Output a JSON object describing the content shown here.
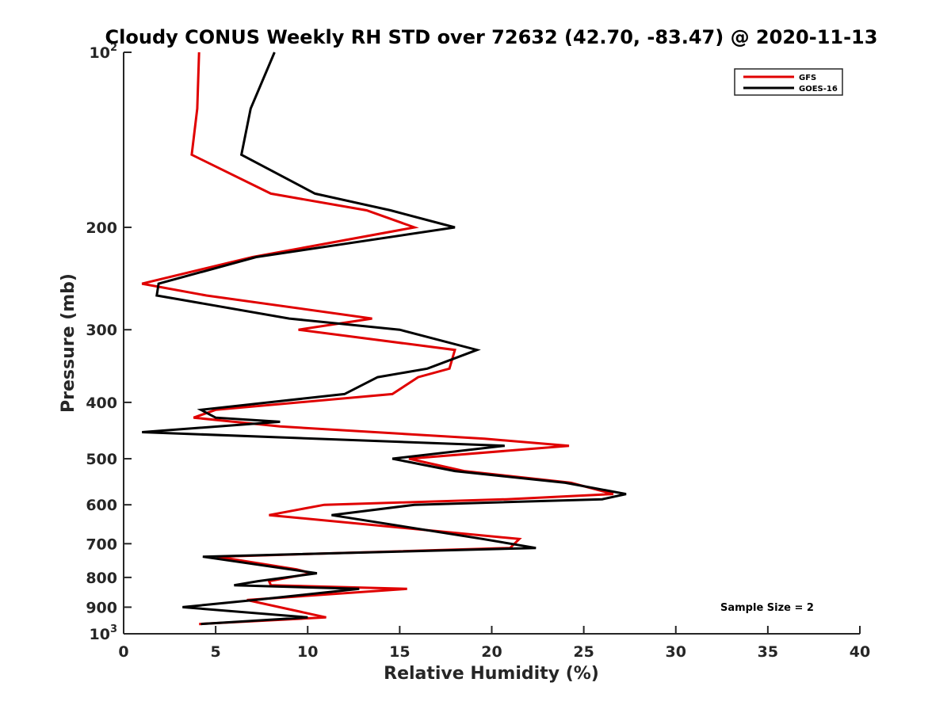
{
  "chart_data": {
    "type": "line",
    "title": "Cloudy CONUS Weekly RH STD over 72632 (42.70, -83.47) @ 2020-11-13",
    "xlabel": "Relative Humidity (%)",
    "ylabel": "Pressure (mb)",
    "xlim": [
      0,
      40
    ],
    "ylim": [
      100,
      1000
    ],
    "yscale": "log",
    "y_reversed": true,
    "xticks": [
      0,
      5,
      10,
      15,
      20,
      25,
      30,
      35,
      40
    ],
    "yticks": [
      {
        "value": 100,
        "base": "10",
        "exp": "2"
      },
      {
        "value": 200,
        "label": "200"
      },
      {
        "value": 300,
        "label": "300"
      },
      {
        "value": 400,
        "label": "400"
      },
      {
        "value": 500,
        "label": "500"
      },
      {
        "value": 600,
        "label": "600"
      },
      {
        "value": 700,
        "label": "700"
      },
      {
        "value": 800,
        "label": "800"
      },
      {
        "value": 900,
        "label": "900"
      },
      {
        "value": 1000,
        "base": "10",
        "exp": "3"
      }
    ],
    "legend_position": "top-right",
    "annotation": "Sample Size = 2",
    "series": [
      {
        "name": "GFS",
        "color": "#e00000",
        "points": [
          [
            4.1,
            100
          ],
          [
            4.0,
            125
          ],
          [
            3.7,
            150
          ],
          [
            8.0,
            175
          ],
          [
            13.2,
            187
          ],
          [
            15.8,
            200
          ],
          [
            7.0,
            225
          ],
          [
            1.0,
            250
          ],
          [
            4.5,
            262
          ],
          [
            13.5,
            287
          ],
          [
            9.5,
            300
          ],
          [
            18.0,
            325
          ],
          [
            17.7,
            350
          ],
          [
            16.0,
            362
          ],
          [
            14.6,
            387
          ],
          [
            5.0,
            412
          ],
          [
            3.8,
            425
          ],
          [
            8.5,
            440
          ],
          [
            19.6,
            462
          ],
          [
            24.2,
            475
          ],
          [
            15.5,
            500
          ],
          [
            18.5,
            525
          ],
          [
            24.3,
            550
          ],
          [
            26.6,
            575
          ],
          [
            20.8,
            587
          ],
          [
            10.9,
            600
          ],
          [
            7.9,
            625
          ],
          [
            21.5,
            687
          ],
          [
            21.0,
            712
          ],
          [
            5.1,
            737
          ],
          [
            9.4,
            775
          ],
          [
            10.2,
            787
          ],
          [
            7.9,
            812
          ],
          [
            8.0,
            825
          ],
          [
            15.4,
            837
          ],
          [
            6.7,
            875
          ],
          [
            11.0,
            937
          ],
          [
            4.1,
            962
          ]
        ]
      },
      {
        "name": "GOES-16",
        "color": "#000000",
        "points": [
          [
            8.2,
            100
          ],
          [
            6.9,
            125
          ],
          [
            6.4,
            150
          ],
          [
            10.4,
            175
          ],
          [
            14.5,
            187
          ],
          [
            18.0,
            200
          ],
          [
            7.2,
            225
          ],
          [
            1.9,
            250
          ],
          [
            1.8,
            262
          ],
          [
            9.0,
            287
          ],
          [
            15.0,
            300
          ],
          [
            19.2,
            325
          ],
          [
            16.5,
            350
          ],
          [
            13.8,
            362
          ],
          [
            12.0,
            387
          ],
          [
            4.2,
            412
          ],
          [
            5.0,
            425
          ],
          [
            8.5,
            432
          ],
          [
            1.0,
            450
          ],
          [
            20.7,
            475
          ],
          [
            14.6,
            500
          ],
          [
            18.0,
            525
          ],
          [
            24.0,
            550
          ],
          [
            27.3,
            575
          ],
          [
            26.0,
            587
          ],
          [
            15.8,
            600
          ],
          [
            11.3,
            625
          ],
          [
            19.5,
            687
          ],
          [
            22.4,
            712
          ],
          [
            4.3,
            737
          ],
          [
            10.5,
            787
          ],
          [
            7.3,
            812
          ],
          [
            6.0,
            825
          ],
          [
            12.8,
            837
          ],
          [
            7.1,
            875
          ],
          [
            3.2,
            900
          ],
          [
            10.0,
            937
          ],
          [
            4.2,
            962
          ]
        ]
      }
    ]
  }
}
